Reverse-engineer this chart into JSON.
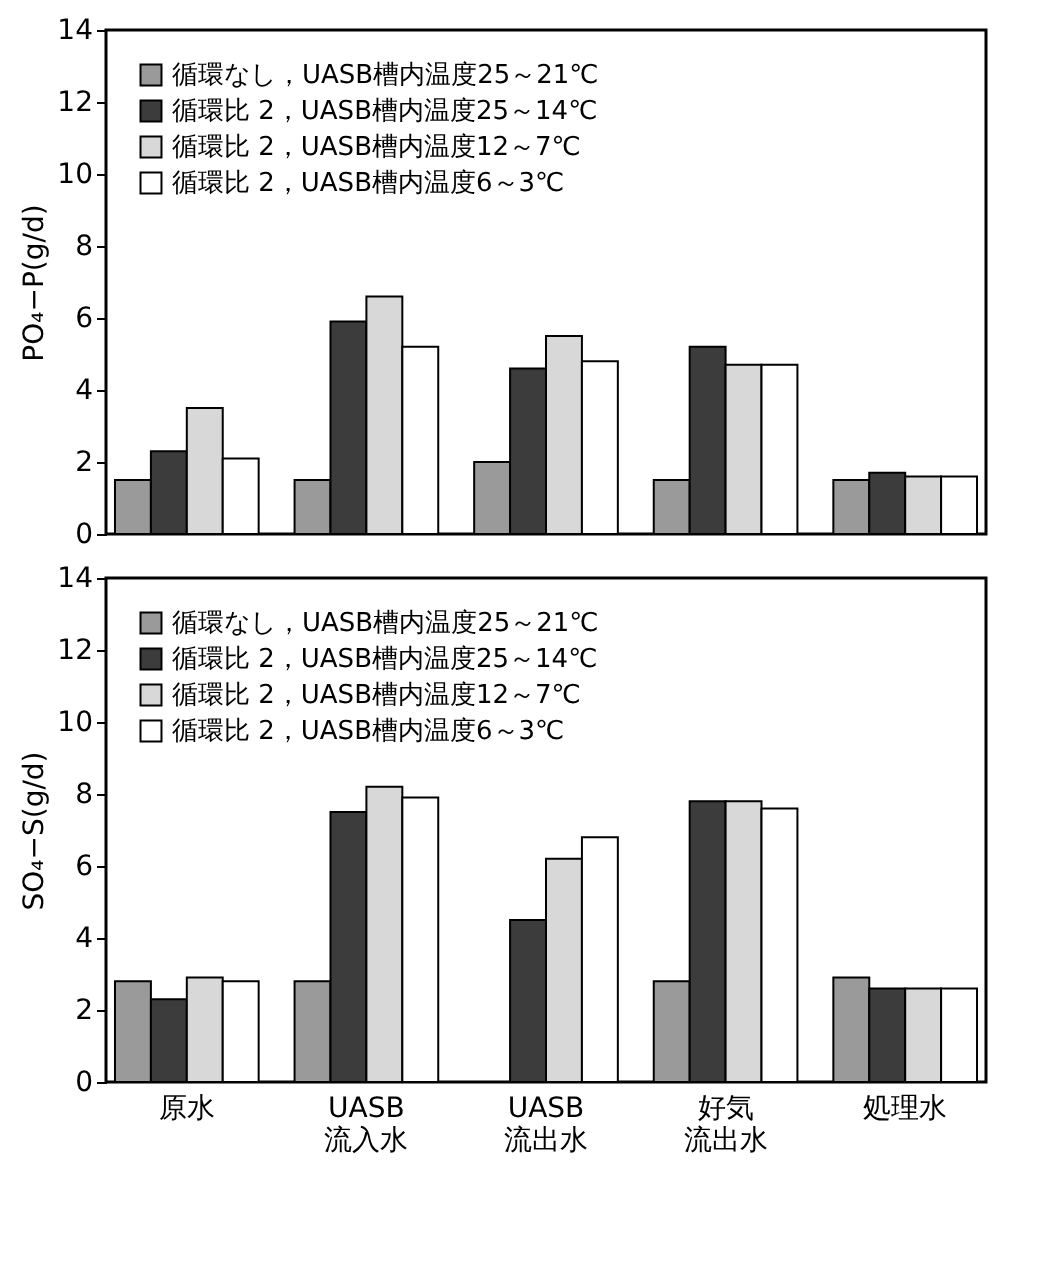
{
  "chart_data": [
    {
      "type": "bar",
      "ylabel": "PO₄−P(g/d)",
      "categories": [
        "原水",
        "UASB流入水",
        "UASB流出水",
        "好気流出水",
        "処理水"
      ],
      "ylim": [
        0,
        14
      ],
      "yticks": [
        0,
        2,
        4,
        6,
        8,
        10,
        12,
        14
      ],
      "tick_labels": "y",
      "legend": "top left",
      "grid": false,
      "series": [
        {
          "name": "循環なし，UASB槽内温度25～21℃",
          "color": "#9a9a9a",
          "values": [
            1.5,
            1.5,
            2.0,
            1.5,
            1.5
          ]
        },
        {
          "name": "循環比 2，UASB槽内温度25～14℃",
          "color": "#3c3c3c",
          "values": [
            2.3,
            5.9,
            4.6,
            5.2,
            1.7
          ]
        },
        {
          "name": "循環比 2，UASB槽内温度12～7℃",
          "color": "#d8d8d8",
          "values": [
            3.5,
            6.6,
            5.5,
            4.7,
            1.6
          ]
        },
        {
          "name": "循環比 2，UASB槽内温度6～3℃",
          "color": "#ffffff",
          "values": [
            2.1,
            5.2,
            4.8,
            4.7,
            1.6
          ]
        }
      ]
    },
    {
      "type": "bar",
      "ylabel": "SO₄−S(g/d)",
      "categories": [
        "原水",
        "UASB流入水",
        "UASB流出水",
        "好気流出水",
        "処理水"
      ],
      "ylim": [
        0,
        14
      ],
      "yticks": [
        0,
        2,
        4,
        6,
        8,
        10,
        12,
        14
      ],
      "legend": "top left",
      "grid": false,
      "series": [
        {
          "name": "循環なし，UASB槽内温度25～21℃",
          "color": "#9a9a9a",
          "values": [
            2.8,
            2.8,
            null,
            2.8,
            2.9
          ]
        },
        {
          "name": "循環比 2，UASB槽内温度25～14℃",
          "color": "#3c3c3c",
          "values": [
            2.3,
            7.5,
            4.5,
            7.8,
            2.6
          ]
        },
        {
          "name": "循環比 2，UASB槽内温度12～7℃",
          "color": "#d8d8d8",
          "values": [
            2.9,
            8.2,
            6.2,
            7.8,
            2.6
          ]
        },
        {
          "name": "循環比 2，UASB槽内温度6～3℃",
          "color": "#ffffff",
          "values": [
            2.8,
            7.9,
            6.8,
            7.6,
            2.6
          ]
        }
      ]
    }
  ]
}
